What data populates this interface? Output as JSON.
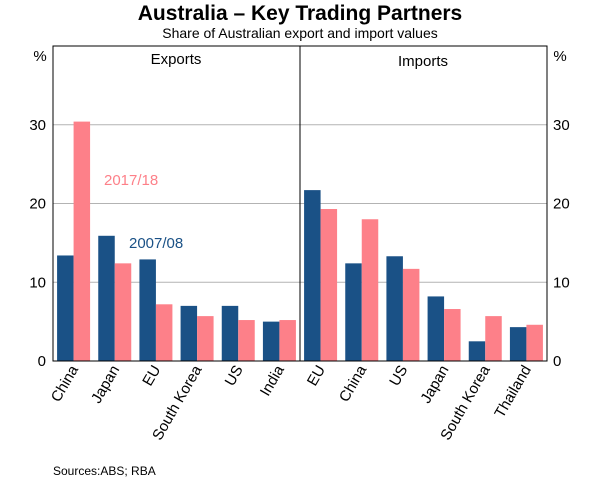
{
  "chart_data": {
    "type": "bar",
    "title": "Australia – Key Trading Partners",
    "subtitle": "Share of Australian export and import values",
    "ylabel_left": "%",
    "ylabel_right": "%",
    "ylim": [
      0,
      40
    ],
    "yticks": [
      0,
      10,
      20,
      30
    ],
    "yticks_labels": [
      "0",
      "10",
      "20",
      "30"
    ],
    "grid": true,
    "source": "Sources:ABS; RBA",
    "series_colors": [
      "#1a5186",
      "#fd8089"
    ],
    "panels": [
      {
        "title": "Exports",
        "categories": [
          "China",
          "Japan",
          "EU",
          "South Korea",
          "US",
          "India"
        ],
        "series": [
          {
            "name": "2007/08",
            "values": [
              13.4,
              15.9,
              12.9,
              7.0,
              7.0,
              5.0
            ]
          },
          {
            "name": "2017/18",
            "values": [
              30.4,
              12.4,
              7.2,
              5.7,
              5.2,
              5.2
            ]
          }
        ]
      },
      {
        "title": "Imports",
        "categories": [
          "EU",
          "China",
          "US",
          "Japan",
          "South Korea",
          "Thailand"
        ],
        "series": [
          {
            "name": "2007/08",
            "values": [
              21.7,
              12.4,
              13.3,
              8.2,
              2.5,
              4.3
            ]
          },
          {
            "name": "2017/18",
            "values": [
              19.3,
              18.0,
              11.7,
              6.6,
              5.7,
              4.6
            ]
          }
        ]
      }
    ]
  }
}
